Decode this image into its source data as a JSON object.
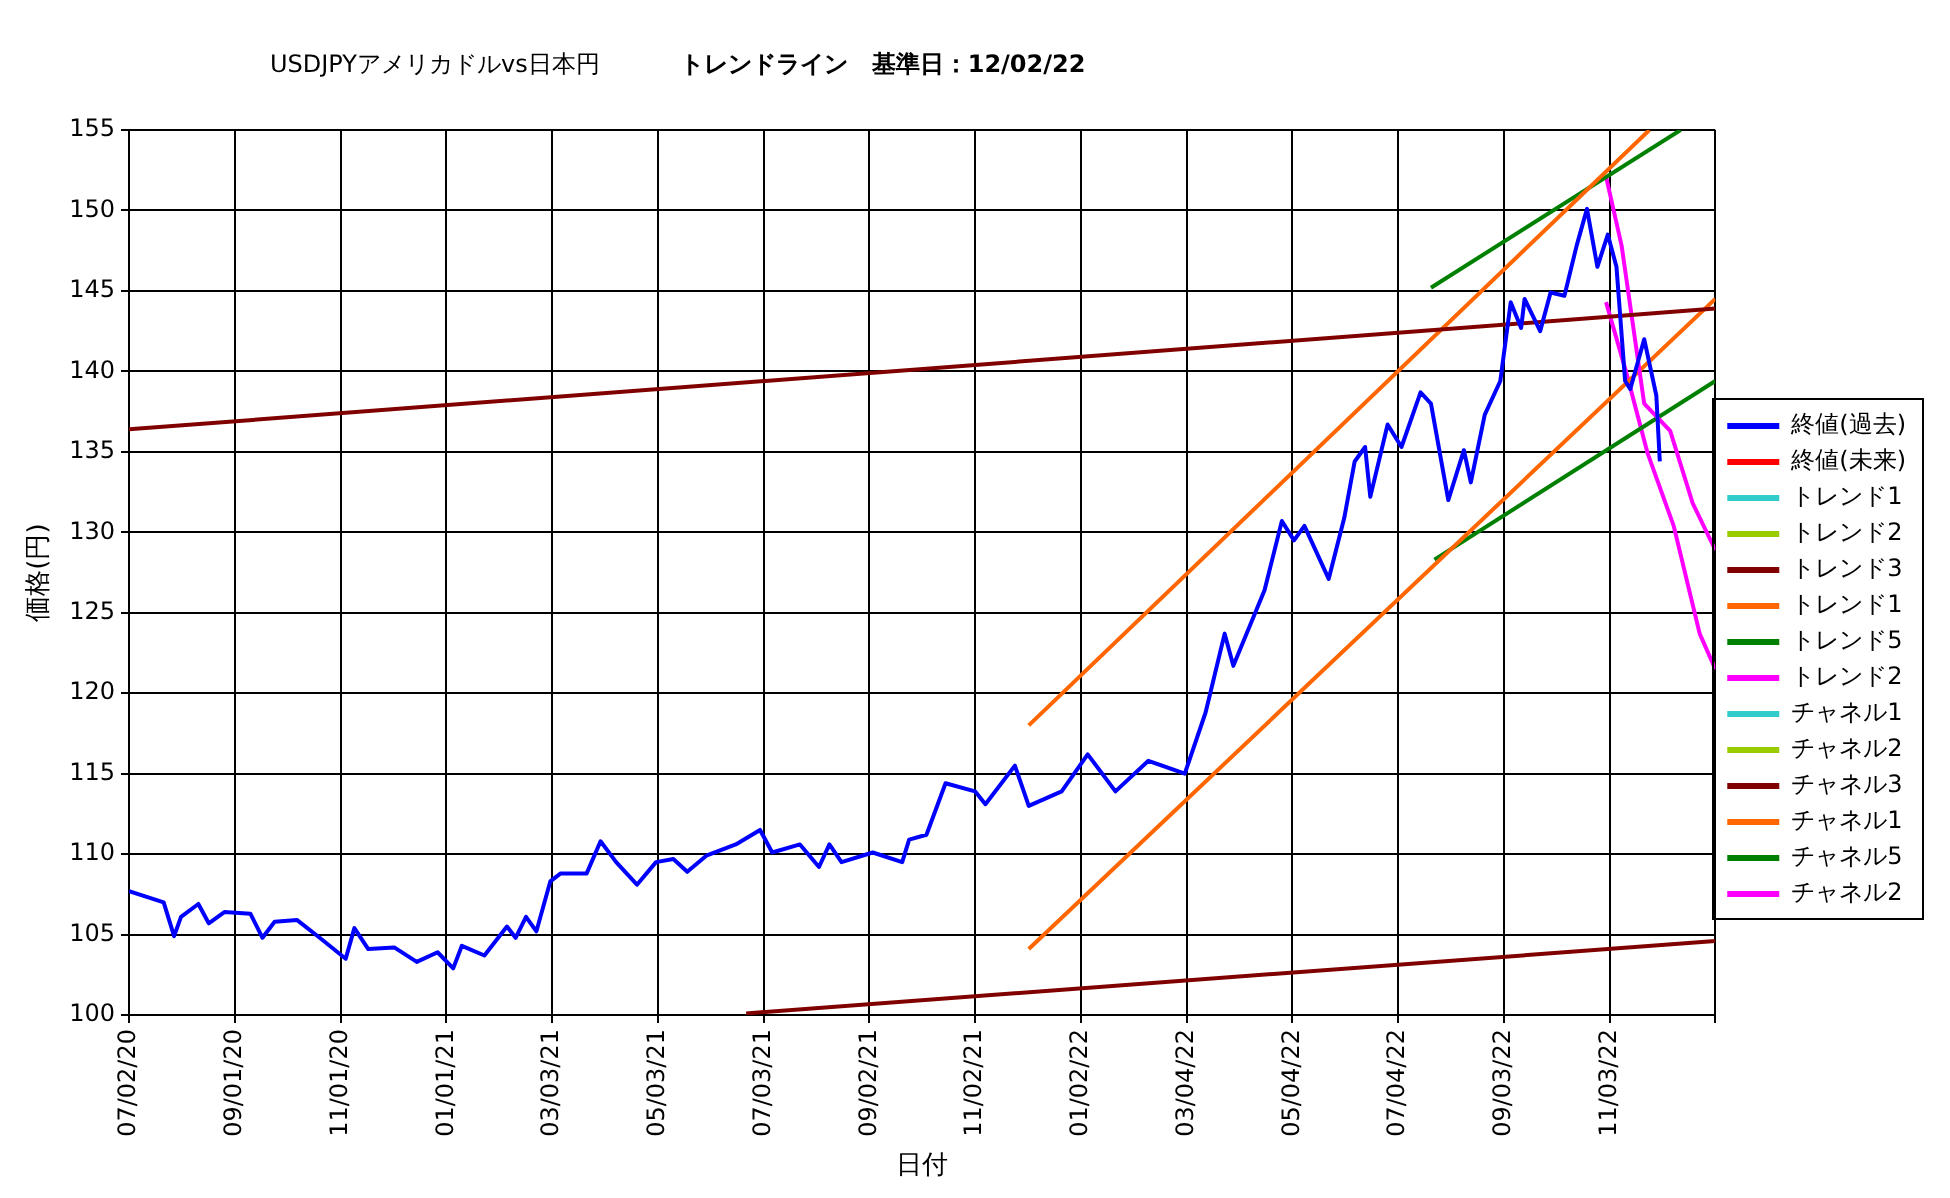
{
  "chart_data": {
    "type": "line",
    "title": "USDJPYアメリカドルvs日本円",
    "subtitle": "トレンドライン　基準日：12/02/22",
    "xlabel": "日付",
    "ylabel": "価格(円)",
    "xlim": [
      "2020-07-02",
      "2023-01-03"
    ],
    "xticks": [
      {
        "value": "2020-07-02",
        "label": "07/02/20"
      },
      {
        "value": "2020-09-01",
        "label": "09/01/20"
      },
      {
        "value": "2020-11-01",
        "label": "11/01/20"
      },
      {
        "value": "2021-01-01",
        "label": "01/01/21"
      },
      {
        "value": "2021-03-03",
        "label": "03/03/21"
      },
      {
        "value": "2021-05-03",
        "label": "05/03/21"
      },
      {
        "value": "2021-07-03",
        "label": "07/03/21"
      },
      {
        "value": "2021-09-02",
        "label": "09/02/21"
      },
      {
        "value": "2021-11-02",
        "label": "11/02/21"
      },
      {
        "value": "2022-01-02",
        "label": "01/02/22"
      },
      {
        "value": "2022-03-04",
        "label": "03/04/22"
      },
      {
        "value": "2022-05-04",
        "label": "05/04/22"
      },
      {
        "value": "2022-07-04",
        "label": "07/04/22"
      },
      {
        "value": "2022-09-03",
        "label": "09/03/22"
      },
      {
        "value": "2022-11-03",
        "label": "11/03/22"
      },
      {
        "value": "2023-01-03",
        "label": null
      }
    ],
    "ylim": [
      100,
      155
    ],
    "yticks": [
      100,
      105,
      110,
      115,
      120,
      125,
      130,
      135,
      140,
      145,
      150,
      155
    ],
    "grid": true,
    "legend": "right",
    "marker": "none",
    "series": [
      {
        "name": "終値(過去)",
        "color": "#0000ff",
        "x": [
          "2020-07-02",
          "2020-07-22",
          "2020-07-28",
          "2020-08-01",
          "2020-08-11",
          "2020-08-17",
          "2020-08-26",
          "2020-09-10",
          "2020-09-17",
          "2020-09-24",
          "2020-10-07",
          "2020-10-20",
          "2020-11-04",
          "2020-11-09",
          "2020-11-17",
          "2020-12-02",
          "2020-12-15",
          "2020-12-27",
          "2021-01-05",
          "2021-01-10",
          "2021-01-23",
          "2021-02-05",
          "2021-02-10",
          "2021-02-16",
          "2021-02-22",
          "2021-03-02",
          "2021-03-08",
          "2021-03-23",
          "2021-03-31",
          "2021-04-09",
          "2021-04-21",
          "2021-05-02",
          "2021-05-12",
          "2021-05-20",
          "2021-05-31",
          "2021-06-17",
          "2021-07-01",
          "2021-07-08",
          "2021-07-24",
          "2021-08-04",
          "2021-08-10",
          "2021-08-17",
          "2021-09-04",
          "2021-09-21",
          "2021-09-25",
          "2021-10-05",
          "2021-10-16",
          "2021-11-02",
          "2021-11-08",
          "2021-11-25",
          "2021-12-03",
          "2021-12-22",
          "2022-01-06",
          "2022-01-22",
          "2022-02-10",
          "2022-03-03",
          "2022-03-15",
          "2022-03-26",
          "2022-03-31",
          "2022-04-18",
          "2022-04-28",
          "2022-05-05",
          "2022-05-11",
          "2022-05-25",
          "2022-06-03",
          "2022-06-09",
          "2022-06-15",
          "2022-06-18",
          "2022-06-28",
          "2022-07-06",
          "2022-07-17",
          "2022-07-23",
          "2022-08-02",
          "2022-08-11",
          "2022-08-15",
          "2022-08-23",
          "2022-09-01",
          "2022-09-07",
          "2022-09-13",
          "2022-09-15",
          "2022-09-24",
          "2022-09-30",
          "2022-10-08",
          "2022-10-15",
          "2022-10-21",
          "2022-10-27",
          "2022-11-02",
          "2022-11-07",
          "2022-11-12",
          "2022-11-15",
          "2022-11-23",
          "2022-11-30",
          "2022-12-02"
        ],
        "values": [
          107.7,
          107.0,
          104.9,
          106.1,
          106.9,
          105.7,
          106.4,
          106.3,
          104.8,
          105.8,
          105.9,
          104.8,
          103.5,
          105.4,
          104.1,
          104.2,
          103.3,
          103.9,
          102.9,
          104.3,
          103.7,
          105.5,
          104.8,
          106.1,
          105.2,
          108.3,
          108.8,
          108.8,
          110.8,
          109.5,
          108.1,
          109.5,
          109.7,
          108.9,
          109.9,
          110.6,
          111.5,
          110.1,
          110.6,
          109.2,
          110.6,
          109.5,
          110.1,
          109.5,
          110.9,
          111.2,
          114.4,
          113.9,
          113.1,
          115.5,
          113.0,
          113.9,
          116.2,
          113.9,
          115.8,
          115.0,
          118.8,
          123.7,
          121.7,
          126.4,
          130.7,
          129.5,
          130.4,
          127.1,
          130.9,
          134.4,
          135.3,
          132.2,
          136.7,
          135.3,
          138.7,
          138.0,
          132.0,
          135.1,
          133.1,
          137.3,
          139.4,
          144.3,
          142.7,
          144.5,
          142.5,
          144.9,
          144.7,
          147.8,
          150.1,
          146.5,
          148.5,
          146.5,
          139.4,
          138.9,
          142.0,
          138.5,
          134.4
        ]
      },
      {
        "name": "終値(未来)",
        "color": "#ff0000"
      },
      {
        "name": "トレンド1",
        "color": "#33cccc"
      },
      {
        "name": "トレンド2",
        "color": "#99cc00"
      },
      {
        "name": "トレンド3",
        "color": "#800000",
        "x": [
          "2020-07-02",
          "2023-01-03"
        ],
        "values": [
          136.4,
          143.9
        ]
      },
      {
        "name": "トレンド1",
        "color": "#ff6600",
        "x": [
          "2021-12-03",
          "2022-11-26"
        ],
        "values": [
          118.0,
          155.0
        ]
      },
      {
        "name": "トレンド5",
        "color": "#008000",
        "x": [
          "2022-07-23",
          "2022-12-14"
        ],
        "values": [
          145.2,
          155.0
        ]
      },
      {
        "name": "トレンド2",
        "color": "#ff00ff",
        "x": [
          "2022-11-01",
          "2022-11-10",
          "2022-11-23",
          "2022-12-08",
          "2022-12-21",
          "2023-01-03"
        ],
        "values": [
          152.1,
          147.8,
          138.0,
          136.3,
          131.8,
          128.9
        ]
      },
      {
        "name": "チャネル1",
        "color": "#33cccc"
      },
      {
        "name": "チャネル2",
        "color": "#99cc00"
      },
      {
        "name": "チャネル3",
        "color": "#800000",
        "x": [
          "2021-06-23",
          "2023-01-03"
        ],
        "values": [
          100.1,
          104.6
        ]
      },
      {
        "name": "チャネル1",
        "color": "#ff6600",
        "x": [
          "2021-12-03",
          "2023-01-03"
        ],
        "values": [
          104.1,
          144.5
        ]
      },
      {
        "name": "チャネル5",
        "color": "#008000",
        "x": [
          "2022-07-25",
          "2023-01-03"
        ],
        "values": [
          128.3,
          139.4
        ]
      },
      {
        "name": "チャネル2",
        "color": "#ff00ff",
        "x": [
          "2022-11-01",
          "2022-11-13",
          "2022-11-25",
          "2022-12-10",
          "2022-12-25",
          "2023-01-03"
        ],
        "values": [
          144.3,
          139.8,
          134.9,
          130.4,
          123.7,
          121.5
        ]
      }
    ]
  }
}
